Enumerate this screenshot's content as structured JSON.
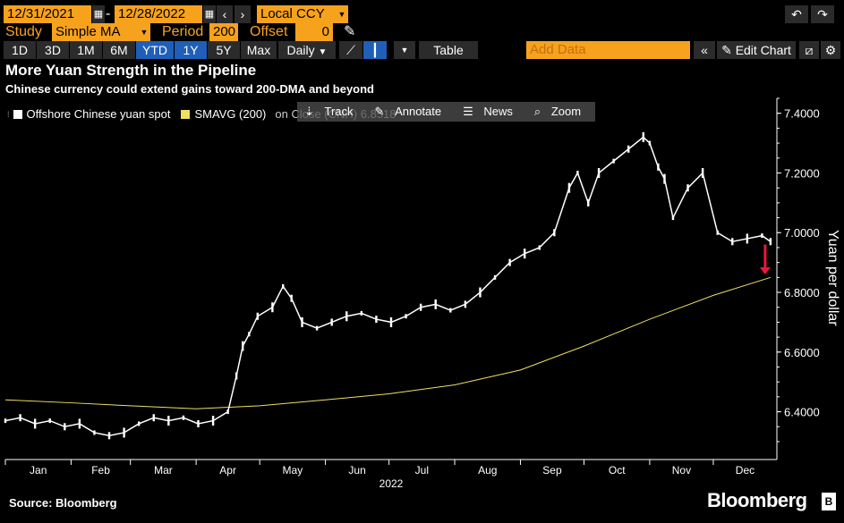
{
  "toolbar": {
    "start_date": "12/31/2021",
    "dash": "-",
    "end_date": "12/28/2022",
    "currency": "Local CCY",
    "study_label": "Study",
    "study_value": "Simple MA",
    "period_label": "Period",
    "period_value": "200",
    "offset_label": "Offset",
    "offset_value": "0",
    "ranges": [
      "1D",
      "3D",
      "1M",
      "6M",
      "YTD",
      "1Y",
      "5Y",
      "Max"
    ],
    "active_ranges": [
      "YTD",
      "1Y"
    ],
    "frequency": "Daily",
    "table_label": "Table",
    "add_data_placeholder": "Add Data",
    "edit_chart_label": "Edit Chart"
  },
  "chart_menu": {
    "track": "Track",
    "annotate": "Annotate",
    "news": "News",
    "zoom": "Zoom"
  },
  "chart_data": {
    "type": "line",
    "title": "More Yuan Strength in the Pipeline",
    "subtitle": "Chinese currency could extend gains toward 200-DMA and beyond",
    "ylabel": "Yuan per dollar",
    "xlabel": "2022",
    "ylim": [
      6.24,
      7.45
    ],
    "yticks": [
      "6.4000",
      "6.6000",
      "6.8000",
      "7.0000",
      "7.2000",
      "7.4000"
    ],
    "ytick_values": [
      6.4,
      6.6,
      6.8,
      7.0,
      7.2,
      7.4
    ],
    "x_months": [
      "Jan",
      "Feb",
      "Mar",
      "Apr",
      "May",
      "Jun",
      "Jul",
      "Aug",
      "Sep",
      "Oct",
      "Nov",
      "Dec"
    ],
    "legend": [
      {
        "name": "Offshore Chinese yuan spot",
        "color": "#ffffff"
      },
      {
        "name": "SMAVG (200)",
        "color": "#f0e060",
        "suffix": "on Close (CNH) 6.8518"
      }
    ],
    "series": [
      {
        "name": "Offshore Chinese yuan spot",
        "color": "#ffffff",
        "dates": [
          "2022-01-01",
          "2022-01-08",
          "2022-01-15",
          "2022-01-22",
          "2022-01-29",
          "2022-02-05",
          "2022-02-12",
          "2022-02-19",
          "2022-02-26",
          "2022-03-05",
          "2022-03-12",
          "2022-03-19",
          "2022-03-26",
          "2022-04-02",
          "2022-04-09",
          "2022-04-16",
          "2022-04-20",
          "2022-04-23",
          "2022-04-26",
          "2022-04-30",
          "2022-05-07",
          "2022-05-12",
          "2022-05-16",
          "2022-05-21",
          "2022-05-28",
          "2022-06-04",
          "2022-06-11",
          "2022-06-18",
          "2022-06-25",
          "2022-07-02",
          "2022-07-09",
          "2022-07-16",
          "2022-07-23",
          "2022-07-30",
          "2022-08-06",
          "2022-08-13",
          "2022-08-20",
          "2022-08-27",
          "2022-09-03",
          "2022-09-10",
          "2022-09-17",
          "2022-09-24",
          "2022-09-28",
          "2022-10-03",
          "2022-10-08",
          "2022-10-15",
          "2022-10-22",
          "2022-10-29",
          "2022-11-01",
          "2022-11-05",
          "2022-11-08",
          "2022-11-12",
          "2022-11-19",
          "2022-11-26",
          "2022-12-03",
          "2022-12-10",
          "2022-12-17",
          "2022-12-24",
          "2022-12-28"
        ],
        "values": [
          6.37,
          6.38,
          6.36,
          6.37,
          6.35,
          6.36,
          6.33,
          6.32,
          6.33,
          6.36,
          6.38,
          6.37,
          6.38,
          6.36,
          6.37,
          6.4,
          6.52,
          6.62,
          6.66,
          6.72,
          6.75,
          6.82,
          6.78,
          6.7,
          6.68,
          6.7,
          6.72,
          6.73,
          6.71,
          6.7,
          6.72,
          6.75,
          6.76,
          6.74,
          6.76,
          6.8,
          6.85,
          6.9,
          6.93,
          6.95,
          7.0,
          7.15,
          7.2,
          7.1,
          7.2,
          7.24,
          7.28,
          7.32,
          7.3,
          7.22,
          7.18,
          7.05,
          7.15,
          7.2,
          7.0,
          6.97,
          6.98,
          6.99,
          6.97
        ]
      },
      {
        "name": "SMAVG (200)",
        "color": "#f0e060",
        "dates": [
          "2022-01-01",
          "2022-02-01",
          "2022-03-01",
          "2022-04-01",
          "2022-05-01",
          "2022-06-01",
          "2022-07-01",
          "2022-08-01",
          "2022-09-01",
          "2022-10-01",
          "2022-11-01",
          "2022-12-01",
          "2022-12-28"
        ],
        "values": [
          6.44,
          6.43,
          6.42,
          6.41,
          6.42,
          6.44,
          6.46,
          6.49,
          6.54,
          6.62,
          6.71,
          6.79,
          6.85
        ]
      }
    ],
    "annotations": [
      {
        "type": "arrow",
        "color": "#e8183c",
        "from_value": 6.96,
        "to_value": 6.86,
        "date": "2022-12-28"
      }
    ]
  },
  "footer": {
    "source": "Source: Bloomberg",
    "logo": "Bloomberg",
    "logo_mark": "B"
  }
}
